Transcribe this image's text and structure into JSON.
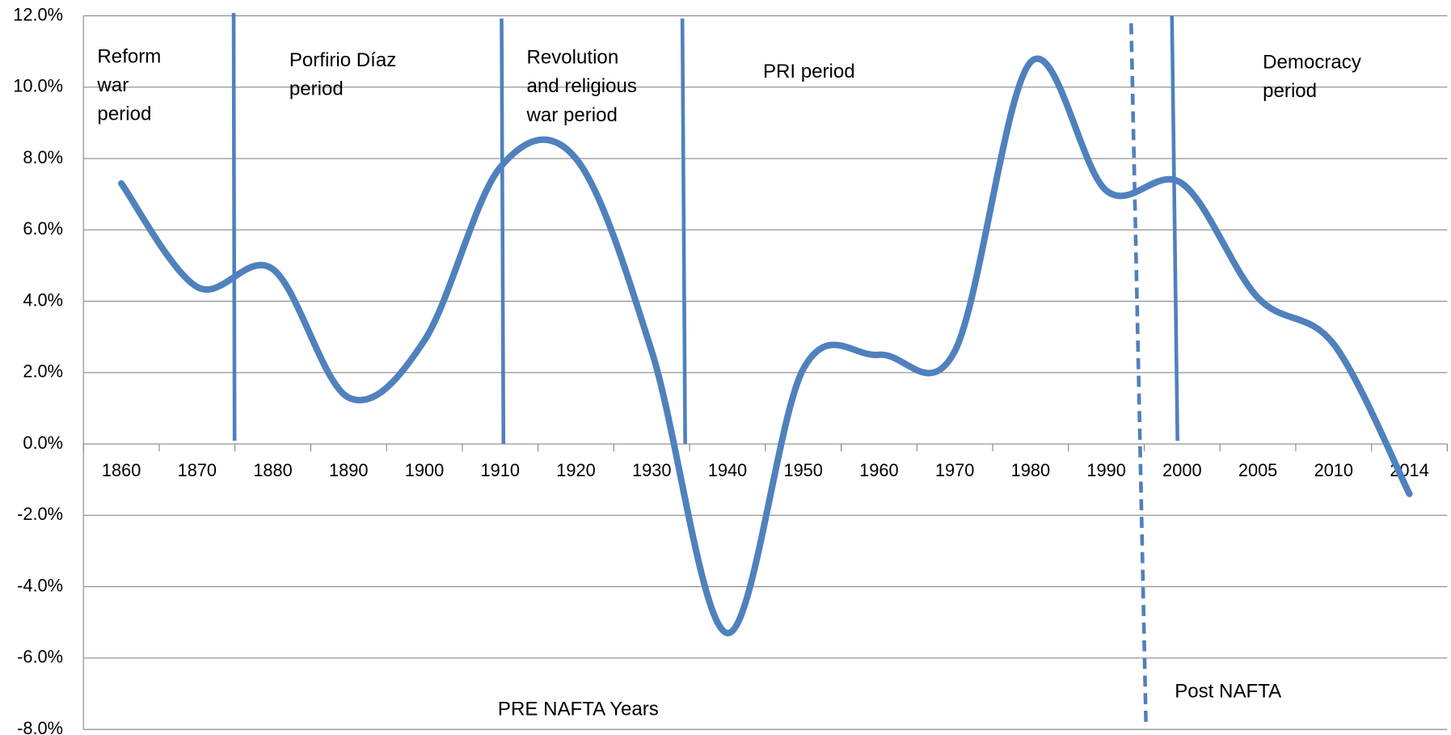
{
  "chart_data": {
    "type": "line",
    "categories": [
      "1860",
      "1870",
      "1880",
      "1890",
      "1900",
      "1910",
      "1920",
      "1930",
      "1940",
      "1950",
      "1960",
      "1970",
      "1980",
      "1990",
      "2000",
      "2005",
      "2010",
      "2014"
    ],
    "series": [
      {
        "color": "#4f81bd",
        "values": [
          7.3,
          4.4,
          4.9,
          1.3,
          2.9,
          7.75,
          8.0,
          2.6,
          -5.3,
          2.1,
          2.5,
          2.6,
          10.7,
          7.1,
          7.3,
          4.1,
          2.8,
          -1.4
        ]
      }
    ],
    "ylim": [
      -8,
      12
    ],
    "yticks": [
      {
        "value": -8,
        "label": "-8.0%"
      },
      {
        "value": -6,
        "label": "-6.0%"
      },
      {
        "value": -4,
        "label": "-4.0%"
      },
      {
        "value": -2,
        "label": "-2.0%"
      },
      {
        "value": 0,
        "label": "0.0%"
      },
      {
        "value": 2,
        "label": "2.0%"
      },
      {
        "value": 4,
        "label": "4.0%"
      },
      {
        "value": 6,
        "label": "6.0%"
      },
      {
        "value": 8,
        "label": "8.0%"
      },
      {
        "value": 10,
        "label": "10.0%"
      },
      {
        "value": 12,
        "label": "12.0%"
      }
    ],
    "grid": true,
    "annotations": [
      {
        "lines": [
          "Reform",
          "war",
          "period"
        ]
      },
      {
        "lines": [
          "Porfirio Díaz",
          "period"
        ]
      },
      {
        "lines": [
          "Revolution",
          "and religious",
          "war  period"
        ]
      },
      {
        "lines": [
          "PRI period"
        ]
      },
      {
        "lines": [
          "Democracy",
          "period"
        ]
      },
      {
        "lines": [
          "PRE NAFTA Years"
        ]
      },
      {
        "lines": [
          "Post NAFTA"
        ]
      }
    ]
  }
}
